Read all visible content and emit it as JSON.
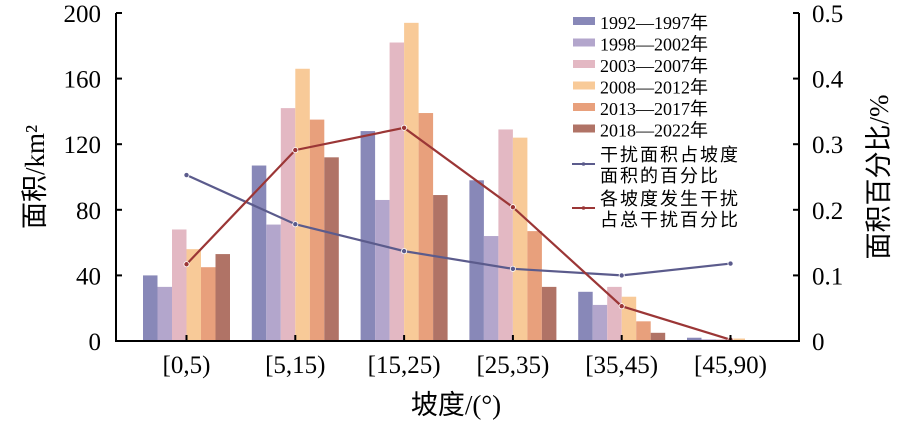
{
  "chart_data": {
    "type": "bar",
    "title": "",
    "xlabel": "坡度/(°)",
    "ylabel": "面积/km²",
    "y2label": "面积百分比/%",
    "ylim": [
      0,
      200
    ],
    "y2lim": [
      0,
      0.5
    ],
    "yticks": [
      "0",
      "40",
      "80",
      "120",
      "160",
      "200"
    ],
    "y2ticks": [
      "0",
      "0.1",
      "0.2",
      "0.3",
      "0.4",
      "0.5"
    ],
    "categories": [
      "[0,5)",
      "[5,15)",
      "[15,25)",
      "[25,35)",
      "[35,45)",
      "[45,90)"
    ],
    "legend_position": "top-right",
    "series": [
      {
        "name": "1992—1997年",
        "kind": "bar",
        "color": "#8888b8",
        "values": [
          40,
          107,
          128,
          98,
          30,
          2
        ]
      },
      {
        "name": "1998—2002年",
        "kind": "bar",
        "color": "#b3a6cc",
        "values": [
          33,
          71,
          86,
          64,
          22,
          1
        ]
      },
      {
        "name": "2003—2007年",
        "kind": "bar",
        "color": "#e3b8c3",
        "values": [
          68,
          142,
          182,
          129,
          33,
          1
        ]
      },
      {
        "name": "2008—2012年",
        "kind": "bar",
        "color": "#f8ca98",
        "values": [
          56,
          166,
          194,
          124,
          27,
          1.5
        ]
      },
      {
        "name": "2013—2017年",
        "kind": "bar",
        "color": "#e8a07c",
        "values": [
          45,
          135,
          139,
          67,
          12,
          0.5
        ]
      },
      {
        "name": "2018—2022年",
        "kind": "bar",
        "color": "#b07366",
        "values": [
          53,
          112,
          89,
          33,
          5,
          0.3
        ]
      },
      {
        "name": "干扰面积占坡度面积的百分比",
        "legend_lines": [
          "干扰面积占坡度",
          "面积的百分比"
        ],
        "kind": "line",
        "axis": "right",
        "color": "#5b5b8c",
        "values": [
          0.253,
          0.178,
          0.137,
          0.11,
          0.1,
          0.118
        ]
      },
      {
        "name": "各坡度发生干扰占总干扰百分比",
        "legend_lines": [
          "各坡度发生干扰",
          "占总干扰百分比"
        ],
        "kind": "line",
        "axis": "right",
        "color": "#9b3636",
        "values": [
          0.117,
          0.291,
          0.325,
          0.204,
          0.053,
          0.002
        ]
      }
    ]
  }
}
